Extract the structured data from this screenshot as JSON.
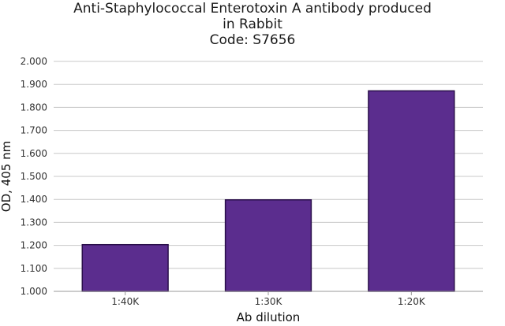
{
  "chart_data": {
    "type": "bar",
    "title_lines": [
      "Anti-Staphylococcal Enterotoxin A antibody produced",
      "in Rabbit",
      "Code: S7656"
    ],
    "xlabel": "Ab dilution",
    "ylabel": "OD, 405 nm",
    "categories": [
      "1:40K",
      "1:30K",
      "1:20K"
    ],
    "values": [
      1.203,
      1.398,
      1.872
    ],
    "ylim": [
      1.0,
      2.0
    ],
    "yticks": [
      "1.000",
      "1.100",
      "1.200",
      "1.300",
      "1.400",
      "1.500",
      "1.600",
      "1.700",
      "1.800",
      "1.900",
      "2.000"
    ],
    "grid": true,
    "legend": "none",
    "bar_color": "#5b2d8e",
    "bar_edge_color": "#2a0f4a"
  }
}
